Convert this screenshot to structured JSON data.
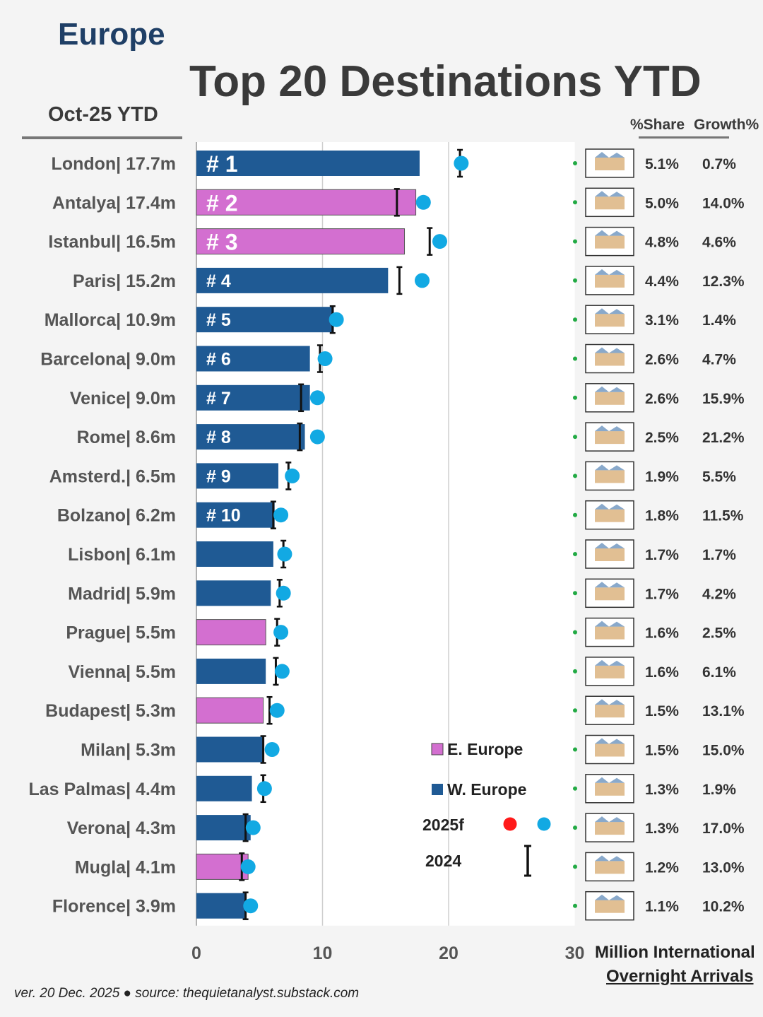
{
  "header": {
    "region": "Europe",
    "title": "Top 20 Destinations YTD",
    "period": "Oct-25 YTD",
    "col_share": "%Share",
    "col_growth": "Growth%"
  },
  "legend": {
    "east": "E. Europe",
    "west": "W. Europe",
    "forecast": "2025f",
    "prior": "2024"
  },
  "colors": {
    "west": "#1f5a94",
    "east": "#d36fd0",
    "forecast_dot": "#12a9e3",
    "forecast_dot_alt": "#ff1a1a",
    "prior_marker": "#111111",
    "gridline": "#cfcfcf",
    "label_dot": "#22aa44"
  },
  "axis": {
    "xlabel_line1": "Million International",
    "xlabel_line2": "Overnight Arrivals"
  },
  "footer": "ver. 20 Dec. 2025 ● source: thequietanalyst.substack.com",
  "chart_data": {
    "type": "bar",
    "orientation": "horizontal",
    "xlim": [
      0,
      30
    ],
    "xticks": [
      0,
      10,
      20,
      30
    ],
    "grid": true,
    "legend_position": "bottom-right",
    "categories": [
      "London",
      "Antalya",
      "Istanbul",
      "Paris",
      "Mallorca",
      "Barcelona",
      "Venice",
      "Rome",
      "Amsterd.",
      "Bolzano",
      "Lisbon",
      "Madrid",
      "Prague",
      "Vienna",
      "Budapest",
      "Milan",
      "Las Palmas",
      "Verona",
      "Mugla",
      "Florence"
    ],
    "value_labels": [
      "17.7m",
      "17.4m",
      "16.5m",
      "15.2m",
      "10.9m",
      "9.0m",
      "9.0m",
      "8.6m",
      "6.5m",
      "6.2m",
      "6.1m",
      "5.9m",
      "5.5m",
      "5.5m",
      "5.3m",
      "5.3m",
      "4.4m",
      "4.3m",
      "4.1m",
      "3.9m"
    ],
    "values": [
      17.7,
      17.4,
      16.5,
      15.2,
      10.9,
      9.0,
      9.0,
      8.6,
      6.5,
      6.2,
      6.1,
      5.9,
      5.5,
      5.5,
      5.3,
      5.3,
      4.4,
      4.3,
      4.1,
      3.9
    ],
    "region": [
      "W",
      "E",
      "E",
      "W",
      "W",
      "W",
      "W",
      "W",
      "W",
      "W",
      "W",
      "W",
      "E",
      "W",
      "E",
      "W",
      "W",
      "W",
      "E",
      "W"
    ],
    "rank_labels": [
      "# 1",
      "# 2",
      "# 3",
      "# 4",
      "# 5",
      "# 6",
      "# 7",
      "# 8",
      "# 9",
      "# 10",
      "",
      "",
      "",
      "",
      "",
      "",
      "",
      "",
      "",
      ""
    ],
    "forecast_2025": [
      21.0,
      18.0,
      19.3,
      17.9,
      11.1,
      10.2,
      9.6,
      9.6,
      7.6,
      6.7,
      7.0,
      6.9,
      6.7,
      6.8,
      6.4,
      6.0,
      5.4,
      4.5,
      4.1,
      4.3
    ],
    "prior_2024": [
      20.9,
      15.9,
      18.5,
      16.1,
      10.8,
      9.8,
      8.3,
      8.2,
      7.3,
      6.1,
      6.9,
      6.6,
      6.4,
      6.3,
      5.8,
      5.3,
      5.3,
      3.9,
      3.6,
      3.9
    ],
    "share_pct": [
      "5.1%",
      "5.0%",
      "4.8%",
      "4.4%",
      "3.1%",
      "2.6%",
      "2.6%",
      "2.5%",
      "1.9%",
      "1.8%",
      "1.7%",
      "1.7%",
      "1.6%",
      "1.6%",
      "1.5%",
      "1.5%",
      "1.3%",
      "1.3%",
      "1.2%",
      "1.1%"
    ],
    "growth_pct": [
      "0.7%",
      "14.0%",
      "4.6%",
      "12.3%",
      "1.4%",
      "4.7%",
      "15.9%",
      "21.2%",
      "5.5%",
      "11.5%",
      "1.7%",
      "4.2%",
      "2.5%",
      "6.1%",
      "13.1%",
      "15.0%",
      "1.9%",
      "17.0%",
      "13.0%",
      "10.2%"
    ],
    "icons": [
      "tower-bridge-icon",
      "antalya-gate-icon",
      "mosque-icon",
      "eiffel-tower-icon",
      "mallorca-skyline-icon",
      "sagrada-familia-icon",
      "rialto-bridge-icon",
      "colosseum-icon",
      "canal-houses-icon",
      "bolzano-seal-icon",
      "belem-tower-icon",
      "madrid-statue-icon",
      "prague-castle-icon",
      "vienna-church-icon",
      "parliament-icon",
      "milan-cathedral-icon",
      "las-palmas-skyline-icon",
      "verona-seal-icon",
      "mugla-seal-icon",
      "duomo-dome-icon"
    ]
  }
}
